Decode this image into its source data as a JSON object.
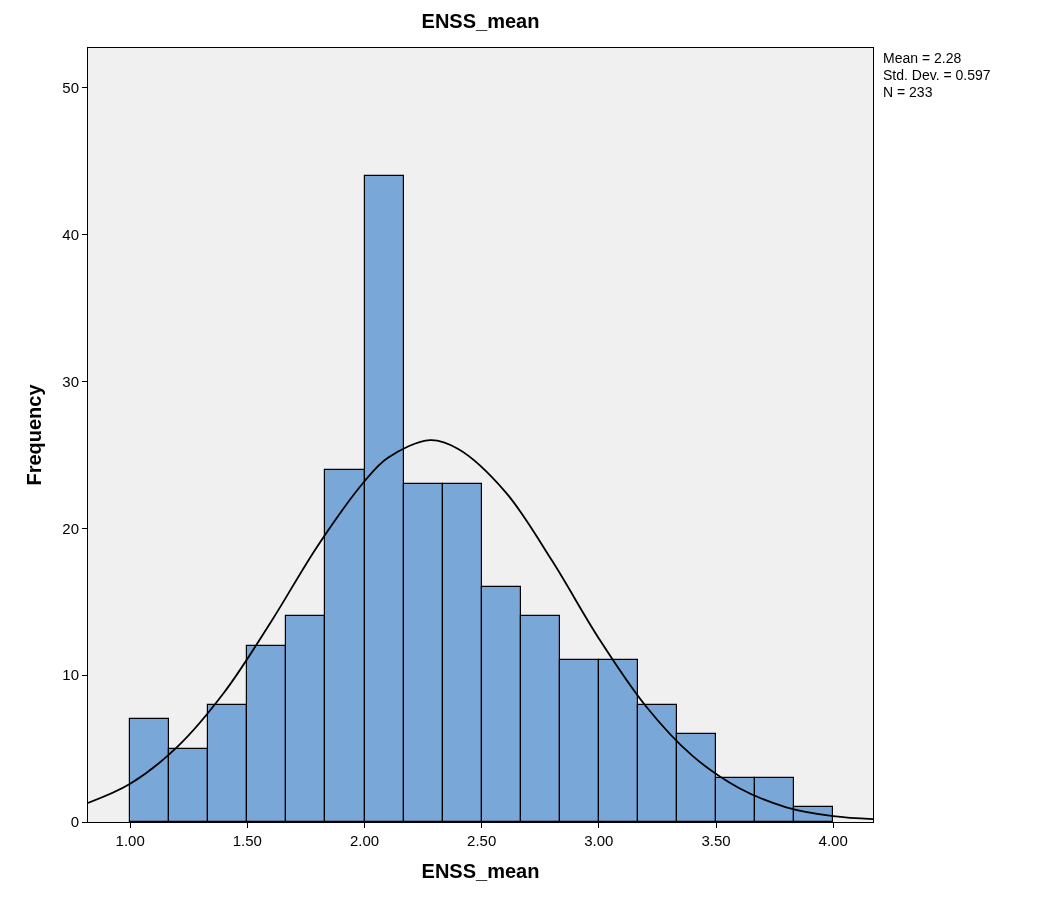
{
  "chart_data": {
    "type": "histogram",
    "title": "ENSS_mean",
    "xlabel": "ENSS_mean",
    "ylabel": "Frequency",
    "bins": [
      1.0,
      1.1667,
      1.3333,
      1.5,
      1.6667,
      1.8333,
      2.0,
      2.1667,
      2.3333,
      2.5,
      2.6667,
      2.8333,
      3.0,
      3.1667,
      3.3333,
      3.5,
      3.6667,
      3.8333,
      4.0
    ],
    "values": [
      7,
      5,
      8,
      12,
      14,
      24,
      44,
      23,
      23,
      16,
      14,
      11,
      11,
      8,
      6,
      3,
      3,
      1
    ],
    "color": "#79a8d8",
    "series": [
      {
        "type": "line",
        "color": "#000000",
        "x": [
          0.82,
          1.0,
          1.2,
          1.4,
          1.6,
          1.8,
          2.0,
          2.1,
          2.28,
          2.4,
          2.6,
          2.8,
          3.0,
          3.2,
          3.4,
          3.6,
          3.8,
          4.0,
          4.17
        ],
        "values": [
          1.3,
          2.6,
          5.1,
          8.8,
          13.6,
          18.8,
          23.2,
          24.8,
          26.0,
          25.4,
          22.5,
          17.8,
          12.5,
          7.9,
          4.5,
          2.3,
          1.0,
          0.4,
          0.2
        ]
      }
    ],
    "annotations": [
      "Mean = 2.28",
      "Std. Dev. = 0.597",
      "N = 233"
    ],
    "xlim": [
      0.82,
      4.17
    ],
    "xticks": [
      {
        "value": 1.0,
        "label": "1.00"
      },
      {
        "value": 1.5,
        "label": "1.50"
      },
      {
        "value": 2.0,
        "label": "2.00"
      },
      {
        "value": 2.5,
        "label": "2.50"
      },
      {
        "value": 3.0,
        "label": "3.00"
      },
      {
        "value": 3.5,
        "label": "3.50"
      },
      {
        "value": 4.0,
        "label": "4.00"
      }
    ],
    "ylim": [
      0,
      52.7
    ],
    "yticks": [
      0,
      10,
      20,
      30,
      40,
      50
    ],
    "grid": false
  }
}
